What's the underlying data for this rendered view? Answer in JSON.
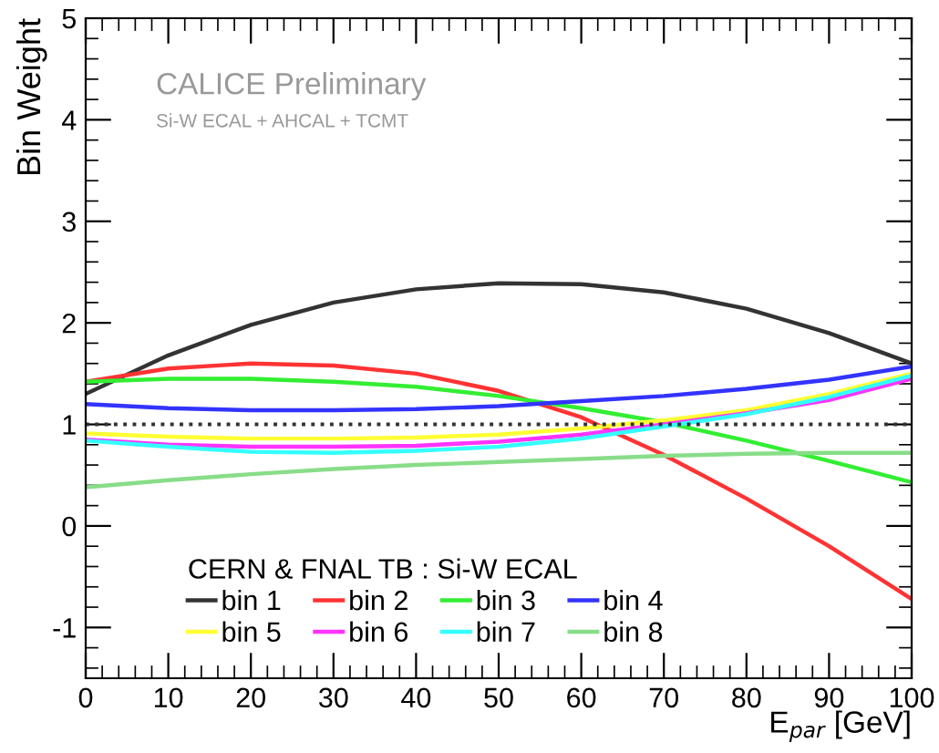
{
  "chart_data": {
    "type": "line",
    "xlabel": "E$_{par}$ [GeV]",
    "ylabel": "Bin Weight",
    "legend_title": "CERN & FNAL TB : Si-W ECAL",
    "legend": "bottom left",
    "annotations": [
      "CALICE Preliminary",
      "Si-W ECAL + AHCAL + TCMT"
    ],
    "x": [
      0,
      10,
      20,
      30,
      40,
      50,
      60,
      70,
      80,
      90,
      100
    ],
    "series": [
      {
        "name": "bin 1",
        "color": "#333333",
        "values": [
          1.3,
          1.68,
          1.98,
          2.2,
          2.33,
          2.39,
          2.38,
          2.3,
          2.14,
          1.9,
          1.6
        ]
      },
      {
        "name": "bin 2",
        "color": "#ff3333",
        "values": [
          1.42,
          1.55,
          1.6,
          1.58,
          1.5,
          1.33,
          1.07,
          0.7,
          0.27,
          -0.2,
          -0.72
        ]
      },
      {
        "name": "bin 3",
        "color": "#33ee33",
        "values": [
          1.42,
          1.45,
          1.45,
          1.42,
          1.37,
          1.28,
          1.16,
          1.02,
          0.84,
          0.64,
          0.43
        ]
      },
      {
        "name": "bin 4",
        "color": "#3333ff",
        "values": [
          1.2,
          1.16,
          1.14,
          1.14,
          1.15,
          1.18,
          1.23,
          1.28,
          1.35,
          1.44,
          1.57
        ]
      },
      {
        "name": "bin 5",
        "color": "#ffff33",
        "values": [
          0.91,
          0.88,
          0.86,
          0.86,
          0.87,
          0.9,
          0.96,
          1.04,
          1.14,
          1.3,
          1.5
        ]
      },
      {
        "name": "bin 6",
        "color": "#ff33ff",
        "values": [
          0.85,
          0.8,
          0.78,
          0.78,
          0.79,
          0.83,
          0.9,
          1.0,
          1.11,
          1.24,
          1.45
        ]
      },
      {
        "name": "bin 7",
        "color": "#33ffff",
        "values": [
          0.84,
          0.78,
          0.73,
          0.72,
          0.74,
          0.78,
          0.86,
          0.98,
          1.1,
          1.27,
          1.48
        ]
      },
      {
        "name": "bin 8",
        "color": "#88dd88",
        "values": [
          0.38,
          0.45,
          0.51,
          0.56,
          0.6,
          0.63,
          0.66,
          0.69,
          0.71,
          0.72,
          0.72
        ]
      }
    ],
    "ref_lines": [
      {
        "axis": "y",
        "value": 1,
        "color": "#333333",
        "line_style": "dotted"
      }
    ],
    "xlim": [
      0,
      100
    ],
    "xticks": [
      0,
      10,
      20,
      30,
      40,
      50,
      60,
      70,
      80,
      90,
      100
    ],
    "ylim": [
      -1.5,
      5
    ],
    "yticks": [
      -1,
      0,
      1,
      2,
      3,
      4,
      5
    ],
    "grid": false,
    "marker": "none",
    "line_style": "solid"
  }
}
